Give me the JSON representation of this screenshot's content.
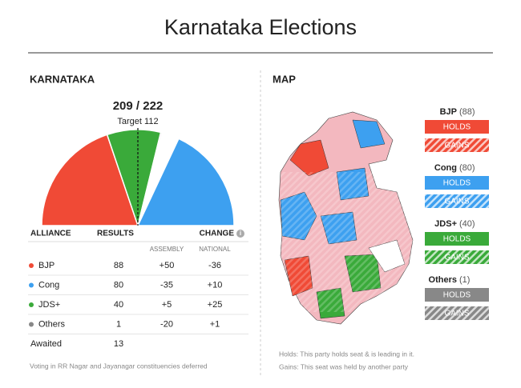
{
  "title": "Karnataka Elections",
  "left": {
    "heading": "KARNATAKA",
    "summary": "209 / 222",
    "target": "Target 112",
    "columns": {
      "alliance": "ALLIANCE",
      "results": "RESULTS",
      "change": "CHANGE",
      "assembly": "ASSEMBLY",
      "national": "NATIONAL"
    },
    "rows": [
      {
        "name": "BJP",
        "results": 88,
        "assembly": "+50",
        "national": "-36",
        "color": "#f04a36"
      },
      {
        "name": "Cong",
        "results": 80,
        "assembly": "-35",
        "national": "+10",
        "color": "#3da0f0"
      },
      {
        "name": "JDS+",
        "results": 40,
        "assembly": "+5",
        "national": "+25",
        "color": "#3aaa3a"
      },
      {
        "name": "Others",
        "results": 1,
        "assembly": "-20",
        "national": "+1",
        "color": "#888888"
      }
    ],
    "awaited": {
      "name": "Awaited",
      "results": 13
    },
    "footnote": "Voting in RR Nagar and Jayanagar constituencies deferred"
  },
  "right": {
    "heading": "MAP",
    "legend": [
      {
        "name": "BJP",
        "count": "(88)",
        "holds": "HOLDS",
        "gains": "GAINS",
        "color": "#f04a36"
      },
      {
        "name": "Cong",
        "count": "(80)",
        "holds": "HOLDS",
        "gains": "GAINS",
        "color": "#3da0f0"
      },
      {
        "name": "JDS+",
        "count": "(40)",
        "holds": "HOLDS",
        "gains": "GAINS",
        "color": "#3aaa3a"
      },
      {
        "name": "Others",
        "count": "(1)",
        "holds": "HOLDS",
        "gains": "GAINS",
        "color": "#888888"
      }
    ],
    "notes": [
      "Holds: This party holds seat & is leading in it.",
      "Gains: This seat was held by another party"
    ]
  }
}
